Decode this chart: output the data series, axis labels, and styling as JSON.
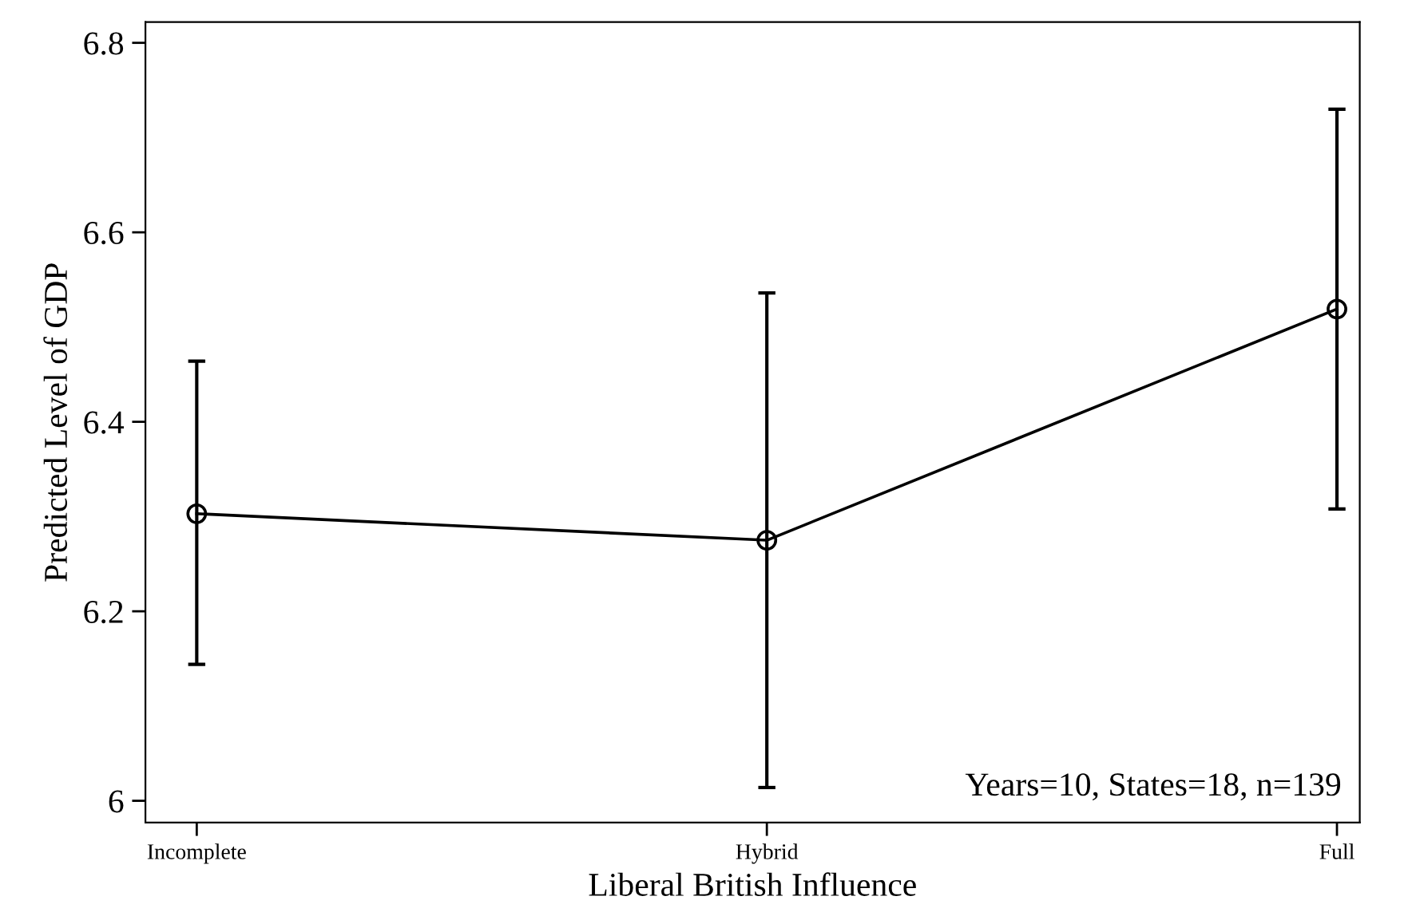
{
  "chart_data": {
    "type": "line",
    "xlabel": "Liberal British Influence",
    "ylabel": "Predicted Level of GDP",
    "categories": [
      "Incomplete",
      "Hybrid",
      "Full"
    ],
    "series": [
      {
        "color": "#000000",
        "values": [
          6.303,
          6.275,
          6.519
        ],
        "errors": [
          [
            6.144,
            6.464
          ],
          [
            6.014,
            6.536
          ],
          [
            6.308,
            6.73
          ]
        ]
      }
    ],
    "ylim": [
      5.977,
      6.822
    ],
    "yticks": [
      {
        "value": 6,
        "label": "6"
      },
      6.2,
      6.4,
      6.6,
      6.8
    ],
    "marker": "circle",
    "line_style": "solid",
    "grid": false,
    "legend": false,
    "annotations": [
      "Years=10, States=18, n=139"
    ]
  }
}
